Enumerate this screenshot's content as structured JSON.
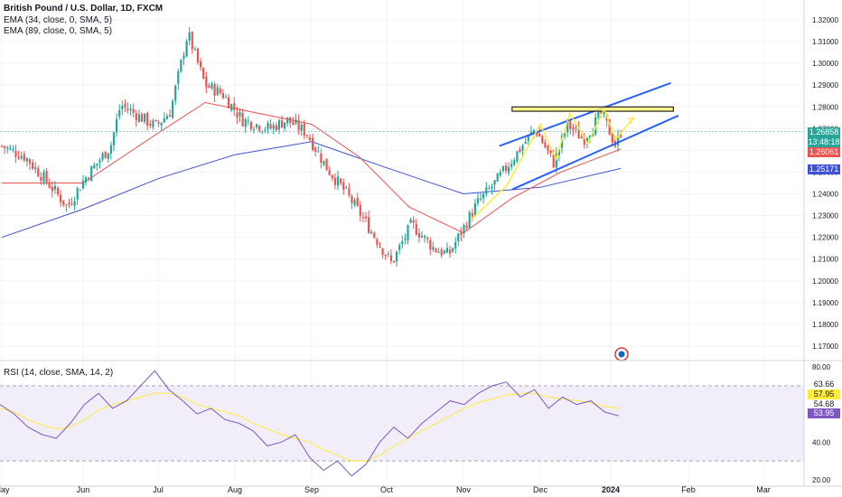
{
  "legend": {
    "title": "British Pound / U.S. Dollar, 1D, FXCM",
    "ema1": "EMA (34, close, 0, SMA, 5)",
    "ema2": "EMA (89, close, 0, SMA, 5)",
    "rsi": "RSI (14, close, SMA, 14, 2)"
  },
  "colors": {
    "up": "#26a69a",
    "down": "#ef5350",
    "ema34": "#ef5350",
    "ema89": "#3f51d8",
    "channel": "#2962ff",
    "zone_fill": "#fff176",
    "zone_stroke": "#000000",
    "arrow": "#ffeb3b",
    "rsi_line": "#7e57c2",
    "rsi_ma": "#ffeb3b",
    "background": "#ffffff",
    "grid": "#f0f3fa",
    "rsi_band": "#ede7f6"
  },
  "badges": {
    "last_price": "1.26858",
    "countdown": "13:48:18",
    "ema34_value": "1.26061",
    "ema89_value": "1.25171",
    "rsi_ma_value": "57.95",
    "rsi_value": "53.95",
    "rsi_upper": "63.66",
    "rsi_lower": "54.68"
  },
  "chart_data": [
    {
      "type": "candlestick",
      "title": "British Pound / U.S. Dollar, 1D, FXCM",
      "x_ticks": [
        "May",
        "Jun",
        "Jul",
        "Aug",
        "Sep",
        "Oct",
        "Nov",
        "Dec",
        "2024",
        "Feb",
        "Mar"
      ],
      "y_ticks": [
        "1.32000",
        "1.31000",
        "1.30000",
        "1.29000",
        "1.28000",
        "1.27000",
        "1.26000",
        "1.25000",
        "1.24000",
        "1.23000",
        "1.22000",
        "1.21000",
        "1.20000",
        "1.19000",
        "1.18000",
        "1.17000"
      ],
      "ylim": [
        1.165,
        1.325
      ],
      "close_path": [
        [
          "2023-05-01",
          1.262
        ],
        [
          "2023-05-10",
          1.257
        ],
        [
          "2023-05-20",
          1.243
        ],
        [
          "2023-05-26",
          1.234
        ],
        [
          "2023-06-01",
          1.246
        ],
        [
          "2023-06-12",
          1.262
        ],
        [
          "2023-06-16",
          1.281
        ],
        [
          "2023-06-30",
          1.271
        ],
        [
          "2023-07-06",
          1.278
        ],
        [
          "2023-07-13",
          1.314
        ],
        [
          "2023-07-20",
          1.29
        ],
        [
          "2023-07-27",
          1.286
        ],
        [
          "2023-08-04",
          1.274
        ],
        [
          "2023-08-15",
          1.27
        ],
        [
          "2023-08-22",
          1.274
        ],
        [
          "2023-08-30",
          1.268
        ],
        [
          "2023-09-07",
          1.252
        ],
        [
          "2023-09-15",
          1.24
        ],
        [
          "2023-09-22",
          1.228
        ],
        [
          "2023-10-03",
          1.208
        ],
        [
          "2023-10-11",
          1.226
        ],
        [
          "2023-10-20",
          1.215
        ],
        [
          "2023-10-26",
          1.212
        ],
        [
          "2023-11-06",
          1.235
        ],
        [
          "2023-11-14",
          1.246
        ],
        [
          "2023-11-22",
          1.259
        ],
        [
          "2023-11-29",
          1.27
        ],
        [
          "2023-12-07",
          1.254
        ],
        [
          "2023-12-13",
          1.272
        ],
        [
          "2023-12-20",
          1.265
        ],
        [
          "2023-12-28",
          1.277
        ],
        [
          "2024-01-03",
          1.262
        ],
        [
          "2024-01-05",
          1.2686
        ]
      ],
      "ema34_path": [
        [
          "2023-05-01",
          1.245
        ],
        [
          "2023-06-01",
          1.245
        ],
        [
          "2023-07-01",
          1.268
        ],
        [
          "2023-07-20",
          1.282
        ],
        [
          "2023-08-15",
          1.276
        ],
        [
          "2023-09-01",
          1.272
        ],
        [
          "2023-09-20",
          1.257
        ],
        [
          "2023-10-10",
          1.234
        ],
        [
          "2023-11-01",
          1.222
        ],
        [
          "2023-11-20",
          1.238
        ],
        [
          "2023-12-10",
          1.25
        ],
        [
          "2024-01-05",
          1.2606
        ]
      ],
      "ema89_path": [
        [
          "2023-05-01",
          1.22
        ],
        [
          "2023-06-01",
          1.233
        ],
        [
          "2023-07-01",
          1.247
        ],
        [
          "2023-08-01",
          1.258
        ],
        [
          "2023-09-01",
          1.264
        ],
        [
          "2023-10-01",
          1.252
        ],
        [
          "2023-11-01",
          1.24
        ],
        [
          "2023-12-01",
          1.243
        ],
        [
          "2024-01-05",
          1.2517
        ]
      ],
      "last_price": 1.26858,
      "ema34_last": 1.26061,
      "ema89_last": 1.25171,
      "channel_upper": [
        [
          "2023-11-15",
          1.262
        ],
        [
          "2024-01-25",
          1.291
        ]
      ],
      "channel_lower": [
        [
          "2023-11-20",
          1.242
        ],
        [
          "2024-01-28",
          1.276
        ]
      ],
      "resistance_zone": {
        "from": "2023-11-20",
        "to": "2024-01-26",
        "low": 1.278,
        "high": 1.28
      }
    },
    {
      "type": "line",
      "title": "RSI (14, close, SMA, 14, 2)",
      "y_ticks": [
        "80.00",
        "40.00",
        "20.00"
      ],
      "ylim": [
        18,
        82
      ],
      "band": [
        30,
        70
      ],
      "series": [
        {
          "values": [
            60,
            55,
            48,
            44,
            42,
            50,
            60,
            66,
            58,
            62,
            70,
            78,
            68,
            62,
            55,
            58,
            52,
            50,
            46,
            38,
            40,
            44,
            32,
            25,
            30,
            22,
            28,
            40,
            48,
            42,
            50,
            56,
            62,
            60,
            66,
            70,
            72,
            64,
            68,
            58,
            64,
            60,
            62,
            56,
            54
          ]
        },
        {
          "values": [
            58,
            56,
            52,
            49,
            47,
            48,
            52,
            57,
            60,
            62,
            64,
            66,
            66,
            64,
            60,
            58,
            56,
            54,
            50,
            47,
            44,
            42,
            40,
            36,
            33,
            30,
            30,
            33,
            38,
            42,
            46,
            50,
            54,
            58,
            61,
            63,
            65,
            66,
            66,
            64,
            63,
            62,
            61,
            59,
            58
          ]
        }
      ]
    }
  ]
}
